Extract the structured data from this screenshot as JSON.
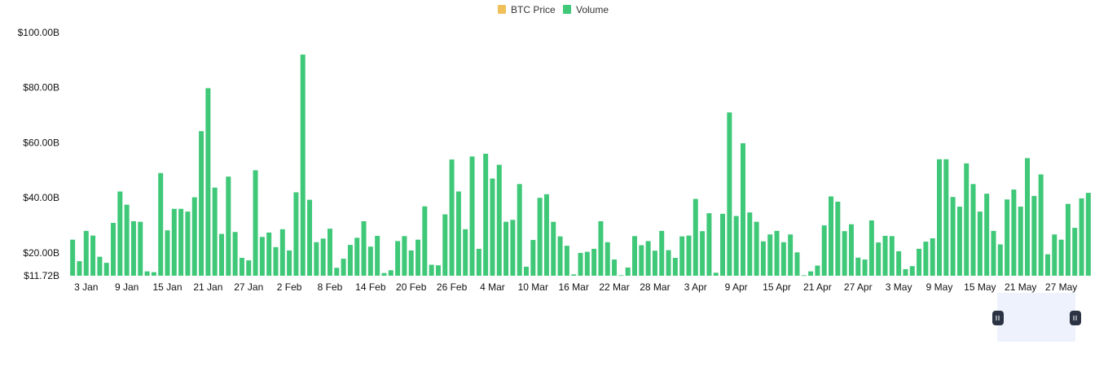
{
  "legend": [
    {
      "label": "BTC Price",
      "color": "#f0c15a"
    },
    {
      "label": "Volume",
      "color": "#3ec878"
    }
  ],
  "colors": {
    "bar": "#3ec878",
    "navigator_fill": "#eef2fd",
    "navigator_handle": "#2c3444"
  },
  "chart_data": {
    "type": "bar",
    "title": "",
    "xlabel": "",
    "ylabel": "",
    "y_min": 11.72,
    "ylim": [
      11.72,
      100
    ],
    "y_tick_values": [
      11.72,
      20,
      40,
      60,
      80,
      100
    ],
    "y_tick_labels": [
      "$11.72B",
      "$20.00B",
      "$40.00B",
      "$60.00B",
      "$80.00B",
      "$100.00B"
    ],
    "x_tick_labels": [
      "3 Jan",
      "9 Jan",
      "15 Jan",
      "21 Jan",
      "27 Jan",
      "2 Feb",
      "8 Feb",
      "14 Feb",
      "20 Feb",
      "26 Feb",
      "4 Mar",
      "10 Mar",
      "16 Mar",
      "22 Mar",
      "28 Mar",
      "3 Apr",
      "9 Apr",
      "15 Apr",
      "21 Apr",
      "27 Apr",
      "3 May",
      "9 May",
      "15 May",
      "21 May",
      "27 May"
    ],
    "x_tick_every": 6,
    "x_tick_offset": 2,
    "series": [
      {
        "name": "Volume",
        "values": [
          24.8,
          17.0,
          28.0,
          26.3,
          18.6,
          16.4,
          30.9,
          42.3,
          37.5,
          31.5,
          31.3,
          13.3,
          13.0,
          49.0,
          28.2,
          36.0,
          36.0,
          35.0,
          40.2,
          64.2,
          79.8,
          43.7,
          26.9,
          47.7,
          27.6,
          18.2,
          17.3,
          50.0,
          25.8,
          27.4,
          22.1,
          28.6,
          20.9,
          42.0,
          92.0,
          39.3,
          23.9,
          25.2,
          28.8,
          14.6,
          17.9,
          22.9,
          25.5,
          31.5,
          22.3,
          26.2,
          12.7,
          13.7,
          24.3,
          26.1,
          20.9,
          24.8,
          36.9,
          15.7,
          15.5,
          34.0,
          53.9,
          42.3,
          28.6,
          55.0,
          21.5,
          56.0,
          47.0,
          52.0,
          31.3,
          32.0,
          45.0,
          15.0,
          24.7,
          40.0,
          41.3,
          31.3,
          26.0,
          22.6,
          12.2,
          20.0,
          20.4,
          21.5,
          31.5,
          23.9,
          17.6,
          11.9,
          14.7,
          26.1,
          22.8,
          24.3,
          20.8,
          28.0,
          21.0,
          18.2,
          26.0,
          26.3,
          39.6,
          27.9,
          34.4,
          12.8,
          34.2,
          71.0,
          33.4,
          59.8,
          34.7,
          31.3,
          24.2,
          26.7,
          28.0,
          23.9,
          26.7,
          20.2,
          11.9,
          13.3,
          15.4,
          30.0,
          40.5,
          38.6,
          27.9,
          30.4,
          18.3,
          17.6,
          31.8,
          23.8,
          26.2,
          26.1,
          20.6,
          14.1,
          15.2,
          21.5,
          24.1,
          25.3,
          54.0,
          54.0,
          40.3,
          36.8,
          52.5,
          45.0,
          35.0,
          41.5,
          28.0,
          23.1,
          39.4,
          43.0,
          36.8,
          54.4,
          40.7,
          48.5,
          19.5,
          26.7,
          24.8,
          37.8,
          29.1,
          39.8,
          41.8
        ]
      }
    ],
    "legend_position": "top-center",
    "grid": false
  }
}
